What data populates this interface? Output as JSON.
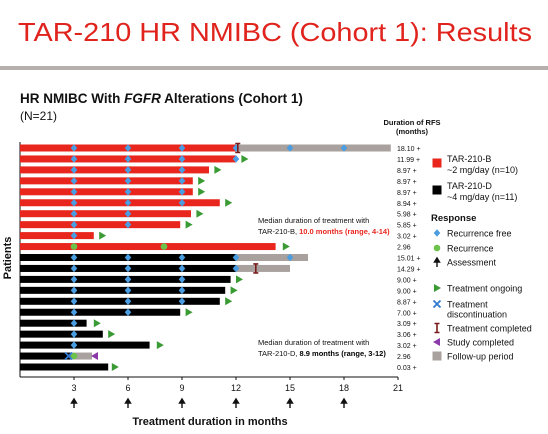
{
  "header": {
    "title": "TAR-210 HR NMIBC (Cohort 1): Results"
  },
  "chart_data": {
    "type": "swimmer",
    "subtitle": [
      "HR NMIBC With ",
      "FGFR",
      " Alterations (Cohort 1)"
    ],
    "n_label": "(N=21)",
    "y_label": "Patients",
    "x_label": "Treatment duration in months",
    "rfs_header": [
      "Duration of RFS",
      "(months)"
    ],
    "xlim": [
      0,
      21
    ],
    "xticks": [
      3,
      6,
      9,
      12,
      15,
      18,
      21
    ],
    "assessments": [
      3,
      6,
      9,
      12,
      15,
      18
    ],
    "arms": [
      {
        "name": "TAR-210-B",
        "dose": "~2 mg/day (n=10)",
        "color": "#e8261e"
      },
      {
        "name": "TAR-210-D",
        "dose": "~4 mg/day (n=11)",
        "color": "#000000"
      }
    ],
    "follow_up_color": "#a9a19d",
    "legend_title": "Response",
    "legend": {
      "recurrence_free": [
        "Recurrence free"
      ],
      "recurrence": [
        "Recurrence"
      ],
      "assessment": [
        "Assessment"
      ],
      "ongoing": [
        "Treatment ongoing"
      ],
      "discontinued": [
        "Treatment",
        "discontinuation"
      ],
      "completed": [
        "Treatment completed"
      ],
      "study_completed": [
        "Study completed"
      ],
      "follow_up": [
        "Follow-up period"
      ]
    },
    "annotations": [
      {
        "line": "Median duration of treatment with",
        "prefix": "TAR-210-B, ",
        "highlight": "10.0 months (range, 4-14)",
        "arm": 0
      },
      {
        "line": "Median duration of treatment with",
        "prefix": "TAR-210-D, ",
        "highlight": "8.9 months (range, 3-12)",
        "arm": 1
      }
    ],
    "patients": [
      {
        "arm": 0,
        "treatment": 12,
        "follow_up": 20.6,
        "recurrence_free": [
          3,
          6,
          9,
          12,
          15,
          18
        ],
        "completed": 12.1,
        "rfs": "18.10 +"
      },
      {
        "arm": 0,
        "treatment": 12,
        "recurrence_free": [
          3,
          6,
          9,
          12
        ],
        "ongoing": 12.3,
        "rfs": "11.99 +"
      },
      {
        "arm": 0,
        "treatment": 10.5,
        "recurrence_free": [
          3,
          6,
          9
        ],
        "ongoing": 10.8,
        "rfs": "8.97 +"
      },
      {
        "arm": 0,
        "treatment": 9.6,
        "recurrence_free": [
          3,
          6,
          9
        ],
        "ongoing": 9.9,
        "rfs": "8.97 +"
      },
      {
        "arm": 0,
        "treatment": 9.6,
        "recurrence_free": [
          3,
          6,
          9
        ],
        "ongoing": 9.9,
        "rfs": "8.97 +"
      },
      {
        "arm": 0,
        "treatment": 11.1,
        "recurrence_free": [
          3,
          6,
          9
        ],
        "ongoing": 11.4,
        "rfs": "8.94 +"
      },
      {
        "arm": 0,
        "treatment": 9.5,
        "recurrence_free": [
          3,
          6
        ],
        "ongoing": 9.8,
        "rfs": "5.98 +"
      },
      {
        "arm": 0,
        "treatment": 8.9,
        "recurrence_free": [
          3,
          6
        ],
        "ongoing": 9.2,
        "rfs": "5.85 +"
      },
      {
        "arm": 0,
        "treatment": 4.1,
        "recurrence_free": [
          3
        ],
        "ongoing": 4.4,
        "rfs": "3.02 +"
      },
      {
        "arm": 0,
        "treatment": 14.2,
        "recurrence": [
          3,
          8
        ],
        "ongoing": 14.6,
        "rfs": "2.96"
      },
      {
        "arm": 1,
        "treatment": 12,
        "follow_up": 16,
        "recurrence_free": [
          3,
          6,
          9,
          12,
          15
        ],
        "rfs": "15.01 +"
      },
      {
        "arm": 1,
        "treatment": 12,
        "follow_up": 15,
        "recurrence_free": [
          3,
          6,
          9,
          12
        ],
        "completed": 13.1,
        "rfs": "14.29 +"
      },
      {
        "arm": 1,
        "treatment": 11.7,
        "recurrence_free": [
          3,
          6,
          9
        ],
        "ongoing": 12,
        "rfs": "9.00 +"
      },
      {
        "arm": 1,
        "treatment": 11.4,
        "recurrence_free": [
          3,
          6,
          9
        ],
        "ongoing": 11.7,
        "rfs": "9.00 +"
      },
      {
        "arm": 1,
        "treatment": 11.1,
        "recurrence_free": [
          3,
          6,
          9
        ],
        "ongoing": 11.4,
        "rfs": "8.87 +"
      },
      {
        "arm": 1,
        "treatment": 8.9,
        "recurrence_free": [
          3,
          6
        ],
        "ongoing": 9.2,
        "rfs": "7.00 +"
      },
      {
        "arm": 1,
        "treatment": 3.7,
        "recurrence_free": [
          3
        ],
        "ongoing": 4.1,
        "rfs": "3.09 +"
      },
      {
        "arm": 1,
        "treatment": 4.6,
        "recurrence_free": [
          3
        ],
        "ongoing": 4.9,
        "rfs": "3.06 +"
      },
      {
        "arm": 1,
        "treatment": 7.2,
        "recurrence_free": [
          3
        ],
        "ongoing": 7.6,
        "rfs": "3.02 +"
      },
      {
        "arm": 1,
        "treatment": 2.8,
        "follow_up": 4,
        "recurrence": [
          3
        ],
        "discontinued": 2.7,
        "study_completed": 4,
        "rfs": "2.96"
      },
      {
        "arm": 1,
        "treatment": 4.9,
        "ongoing": 5.1,
        "rfs": "0.03 +"
      }
    ]
  }
}
